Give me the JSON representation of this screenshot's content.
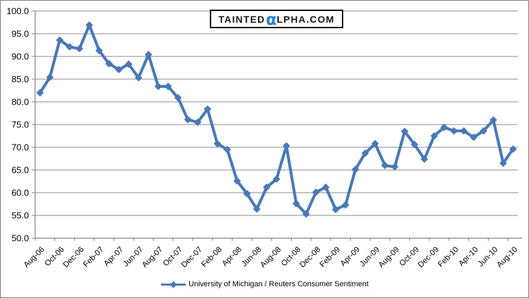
{
  "logo": {
    "part1": "TAINTED",
    "alpha": "α",
    "part2": "LPHA.COM"
  },
  "colors": {
    "series": "#4A79B8",
    "marker": "#4273B4",
    "grid": "#8a8a8a",
    "axis": "#808080",
    "tick_text": "#000000",
    "logo_alpha": "#1E86D2",
    "frame_border": "#7f7f7f"
  },
  "chart_data": {
    "type": "line",
    "title": "",
    "xlabel": "",
    "ylabel": "",
    "ylim": [
      50,
      100
    ],
    "ytick_step": 5,
    "ytick_decimals": 1,
    "grid": "horizontal",
    "legend_position": "bottom",
    "marker": "diamond",
    "x_label_every": 2,
    "x": [
      "Aug-06",
      "Sep-06",
      "Oct-06",
      "Nov-06",
      "Dec-06",
      "Jan-07",
      "Feb-07",
      "Mar-07",
      "Apr-07",
      "May-07",
      "Jun-07",
      "Jul-07",
      "Aug-07",
      "Sep-07",
      "Oct-07",
      "Nov-07",
      "Dec-07",
      "Jan-08",
      "Feb-08",
      "Mar-08",
      "Apr-08",
      "May-08",
      "Jun-08",
      "Jul-08",
      "Aug-08",
      "Sep-08",
      "Oct-08",
      "Nov-08",
      "Dec-08",
      "Jan-09",
      "Feb-09",
      "Mar-09",
      "Apr-09",
      "May-09",
      "Jun-09",
      "Jul-09",
      "Aug-09",
      "Sep-09",
      "Oct-09",
      "Nov-09",
      "Dec-09",
      "Jan-10",
      "Feb-10",
      "Mar-10",
      "Apr-10",
      "May-10",
      "Jun-10",
      "Jul-10",
      "Aug-10"
    ],
    "series": [
      {
        "name": "University of Michigan / Reuters Consumer Sentiment",
        "values": [
          82.0,
          85.4,
          93.6,
          92.1,
          91.7,
          96.9,
          91.3,
          88.4,
          87.1,
          88.3,
          85.3,
          90.4,
          83.4,
          83.4,
          80.9,
          76.1,
          75.5,
          78.4,
          70.8,
          69.5,
          62.6,
          59.8,
          56.4,
          61.2,
          63.0,
          70.3,
          57.6,
          55.3,
          60.1,
          61.2,
          56.3,
          57.3,
          65.1,
          68.7,
          70.8,
          66.0,
          65.7,
          73.5,
          70.6,
          67.4,
          72.5,
          74.4,
          73.6,
          73.6,
          72.2,
          73.6,
          76.0,
          66.5,
          69.6
        ]
      }
    ]
  }
}
